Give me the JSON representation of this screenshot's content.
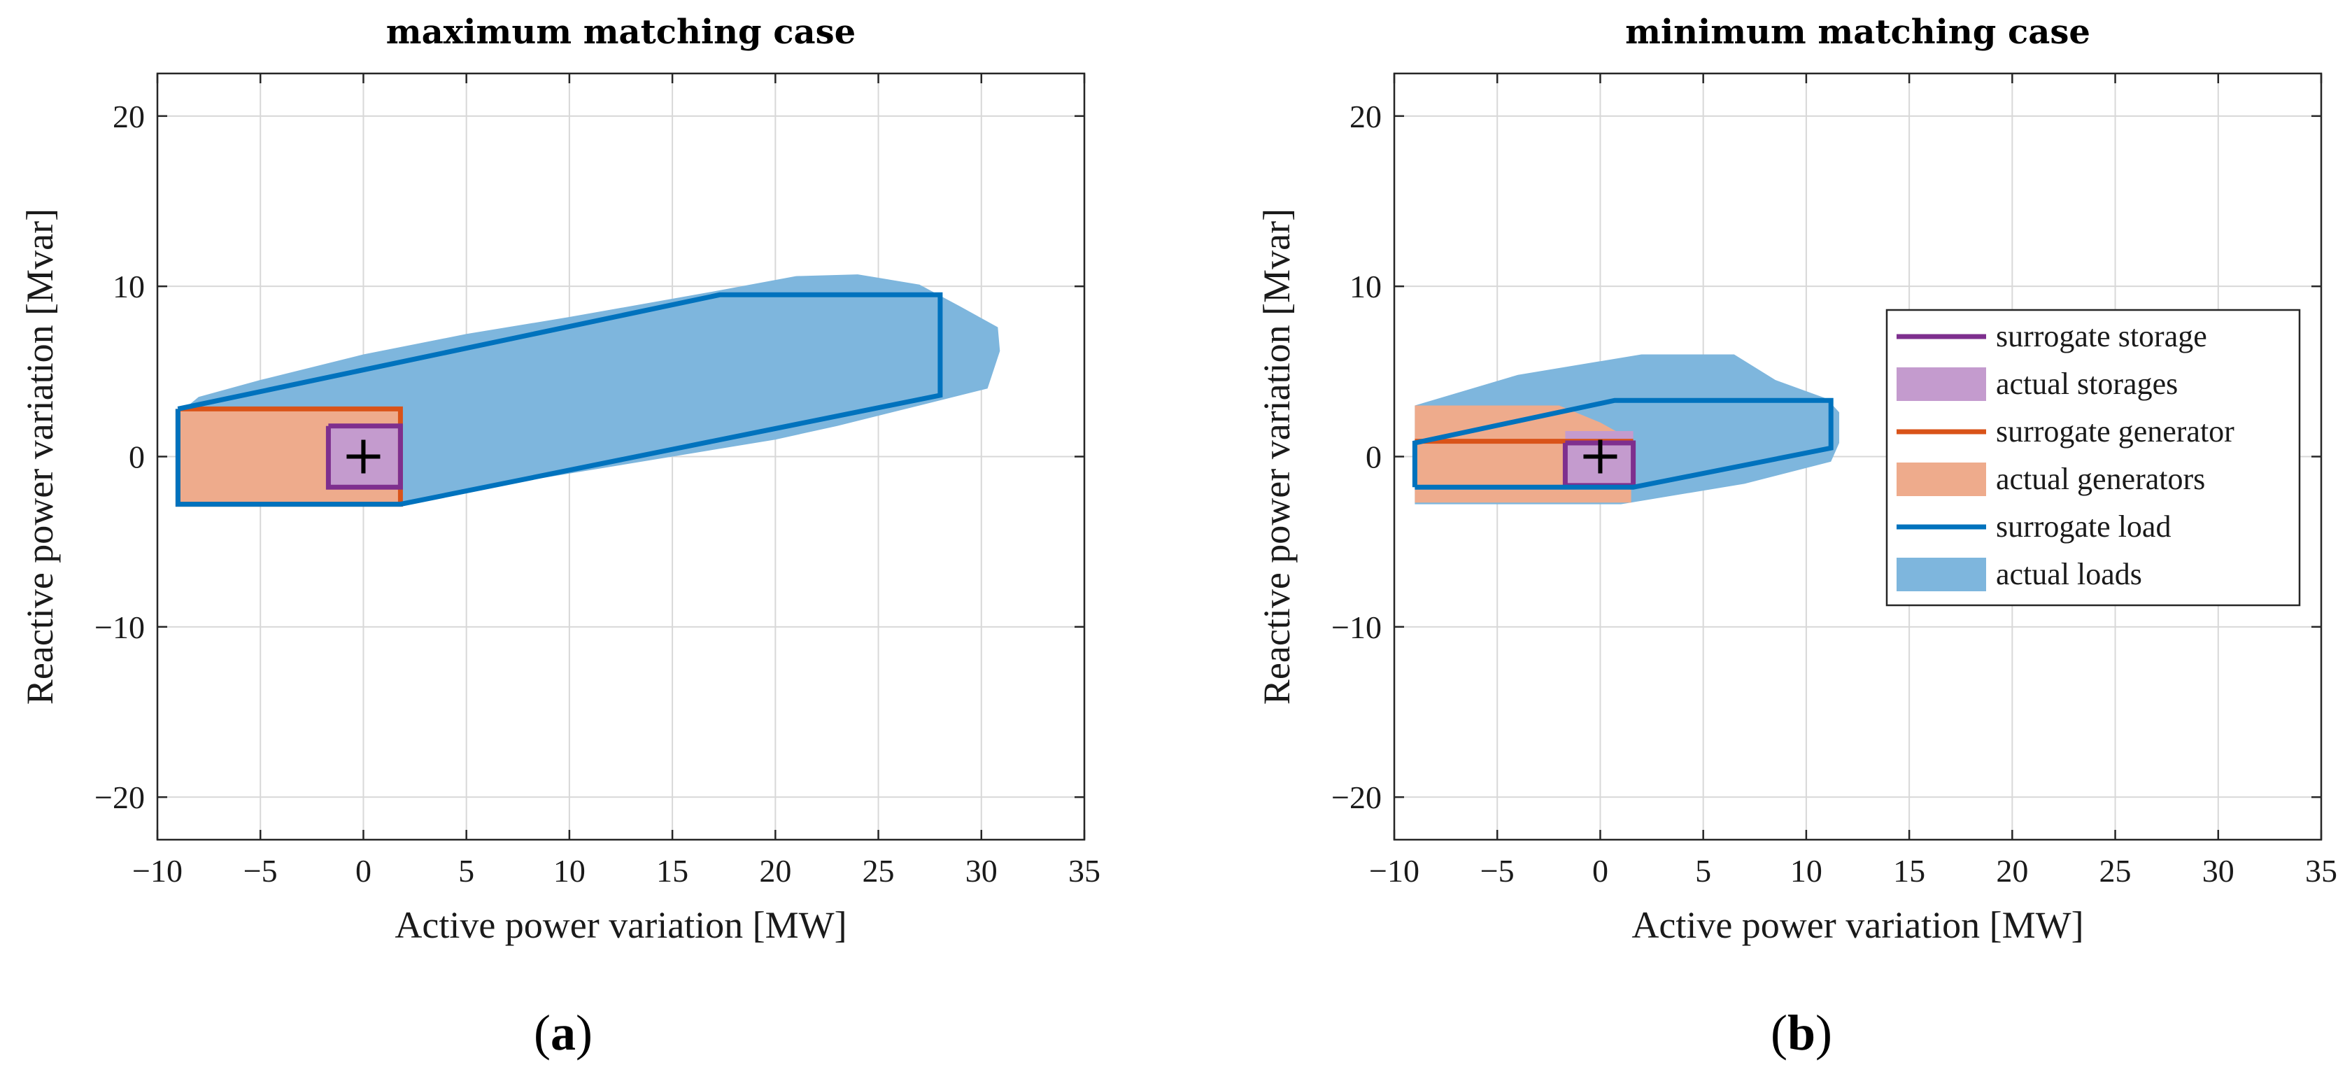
{
  "chart_data": [
    {
      "type": "area",
      "title": "maximum matching case",
      "xlabel": "Active power variation [MW]",
      "ylabel": "Reactive power variation [Mvar]",
      "xlim": [
        -10,
        35
      ],
      "ylim": [
        -22.5,
        22.5
      ],
      "xticks": [
        -10,
        -5,
        0,
        5,
        10,
        15,
        20,
        25,
        30,
        35
      ],
      "yticks": [
        -20,
        -10,
        0,
        10,
        20
      ],
      "xtick_labels": [
        "−10",
        "−5",
        "0",
        "5",
        "10",
        "15",
        "20",
        "25",
        "30",
        "35"
      ],
      "ytick_labels": [
        "−20",
        "−10",
        "0",
        "10",
        "20"
      ],
      "grid": true,
      "panel_label": "a",
      "series": [
        {
          "key": "actual_loads",
          "kind": "fill",
          "color": "#7eb6dd",
          "x": [
            -9,
            -8,
            -5,
            0,
            5,
            10,
            17,
            21,
            24,
            27,
            29,
            30.8,
            30.9,
            30.3,
            27,
            23,
            20,
            15,
            10,
            5,
            2,
            -9
          ],
          "y": [
            2.5,
            3.5,
            4.5,
            6,
            7.2,
            8.2,
            9.7,
            10.6,
            10.7,
            10.1,
            8.8,
            7.6,
            6.2,
            4,
            3,
            1.8,
            1,
            0,
            -1,
            -2,
            -2.8,
            -2.8
          ]
        },
        {
          "key": "actual_generators",
          "kind": "fill",
          "color": "#eeab8c",
          "x": [
            -9,
            1.8,
            1.8,
            -9
          ],
          "y": [
            2.8,
            2.8,
            -2.8,
            -2.8
          ]
        },
        {
          "key": "actual_storages",
          "kind": "fill",
          "color": "#c49bce",
          "x": [
            -1.7,
            1.8,
            1.8,
            -1.7
          ],
          "y": [
            1.8,
            1.8,
            -1.8,
            -1.8
          ]
        },
        {
          "key": "surrogate_generator",
          "kind": "line",
          "color": "#d95319",
          "x": [
            -9,
            1.8,
            1.8,
            -9,
            -9
          ],
          "y": [
            2.8,
            2.8,
            -2.8,
            -2.8,
            2.8
          ]
        },
        {
          "key": "surrogate_storage",
          "kind": "line",
          "color": "#7e2f8e",
          "x": [
            -1.7,
            1.8,
            1.8,
            -1.7,
            -1.7
          ],
          "y": [
            1.8,
            1.8,
            -1.8,
            -1.8,
            1.8
          ]
        },
        {
          "key": "surrogate_load",
          "kind": "line",
          "color": "#0072bd",
          "x": [
            -9,
            17.3,
            28,
            28,
            1.8,
            -9,
            -9
          ],
          "y": [
            2.8,
            9.5,
            9.5,
            3.6,
            -2.8,
            -2.8,
            2.8
          ]
        },
        {
          "key": "origin",
          "kind": "marker",
          "color": "#000000",
          "x": [
            0
          ],
          "y": [
            0
          ]
        }
      ]
    },
    {
      "type": "area",
      "title": "minimum matching case",
      "xlabel": "Active power variation [MW]",
      "ylabel": "Reactive power variation [Mvar]",
      "xlim": [
        -10,
        35
      ],
      "ylim": [
        -22.5,
        22.5
      ],
      "xticks": [
        -10,
        -5,
        0,
        5,
        10,
        15,
        20,
        25,
        30,
        35
      ],
      "yticks": [
        -20,
        -10,
        0,
        10,
        20
      ],
      "xtick_labels": [
        "−10",
        "−5",
        "0",
        "5",
        "10",
        "15",
        "20",
        "25",
        "30",
        "35"
      ],
      "ytick_labels": [
        "−20",
        "−10",
        "0",
        "10",
        "20"
      ],
      "grid": true,
      "panel_label": "b",
      "legend": {
        "position": "right",
        "entries": [
          {
            "label": "surrogate storage",
            "kind": "line",
            "color": "#7e2f8e"
          },
          {
            "label": "actual storages",
            "kind": "fill",
            "color": "#c49bce"
          },
          {
            "label": "surrogate generator",
            "kind": "line",
            "color": "#d95319"
          },
          {
            "label": "actual generators",
            "kind": "fill",
            "color": "#eeab8c"
          },
          {
            "label": "surrogate load",
            "kind": "line",
            "color": "#0072bd"
          },
          {
            "label": "actual loads",
            "kind": "fill",
            "color": "#7eb6dd"
          }
        ]
      },
      "series": [
        {
          "key": "actual_loads",
          "kind": "fill",
          "color": "#7eb6dd",
          "x": [
            -9,
            -4,
            2,
            6.5,
            8.5,
            11,
            11.6,
            11.6,
            11.2,
            7,
            1,
            -1,
            -9
          ],
          "y": [
            3,
            4.8,
            6,
            6,
            4.5,
            3.4,
            2.6,
            0.8,
            -0.3,
            -1.6,
            -2.8,
            -2.8,
            -2.8
          ]
        },
        {
          "key": "actual_generators",
          "kind": "fill",
          "color": "#eeab8c",
          "x": [
            -9,
            -2,
            0,
            1.5,
            1.5,
            0,
            -9
          ],
          "y": [
            3,
            3,
            2,
            1,
            -2.7,
            -2.7,
            -2.7
          ]
        },
        {
          "key": "actual_storages",
          "kind": "fill",
          "color": "#c49bce",
          "x": [
            -1.7,
            1.6,
            1.6,
            -1.7
          ],
          "y": [
            1.5,
            1.5,
            -1.7,
            -1.7
          ]
        },
        {
          "key": "surrogate_generator",
          "kind": "line",
          "color": "#d95319",
          "x": [
            -9,
            1.6
          ],
          "y": [
            0.9,
            0.9
          ]
        },
        {
          "key": "surrogate_storage",
          "kind": "line",
          "color": "#7e2f8e",
          "x": [
            -1.7,
            1.6,
            1.6,
            -1.7,
            -1.7
          ],
          "y": [
            0.8,
            0.8,
            -1.7,
            -1.7,
            0.8
          ]
        },
        {
          "key": "surrogate_load",
          "kind": "line",
          "color": "#0072bd",
          "x": [
            -9,
            -9,
            0.7,
            11.2,
            11.2,
            1.6,
            -9
          ],
          "y": [
            -1.8,
            0.8,
            3.3,
            3.3,
            0.5,
            -1.8,
            -1.8
          ]
        },
        {
          "key": "origin",
          "kind": "marker",
          "color": "#000000",
          "x": [
            0
          ],
          "y": [
            0
          ]
        }
      ]
    }
  ]
}
